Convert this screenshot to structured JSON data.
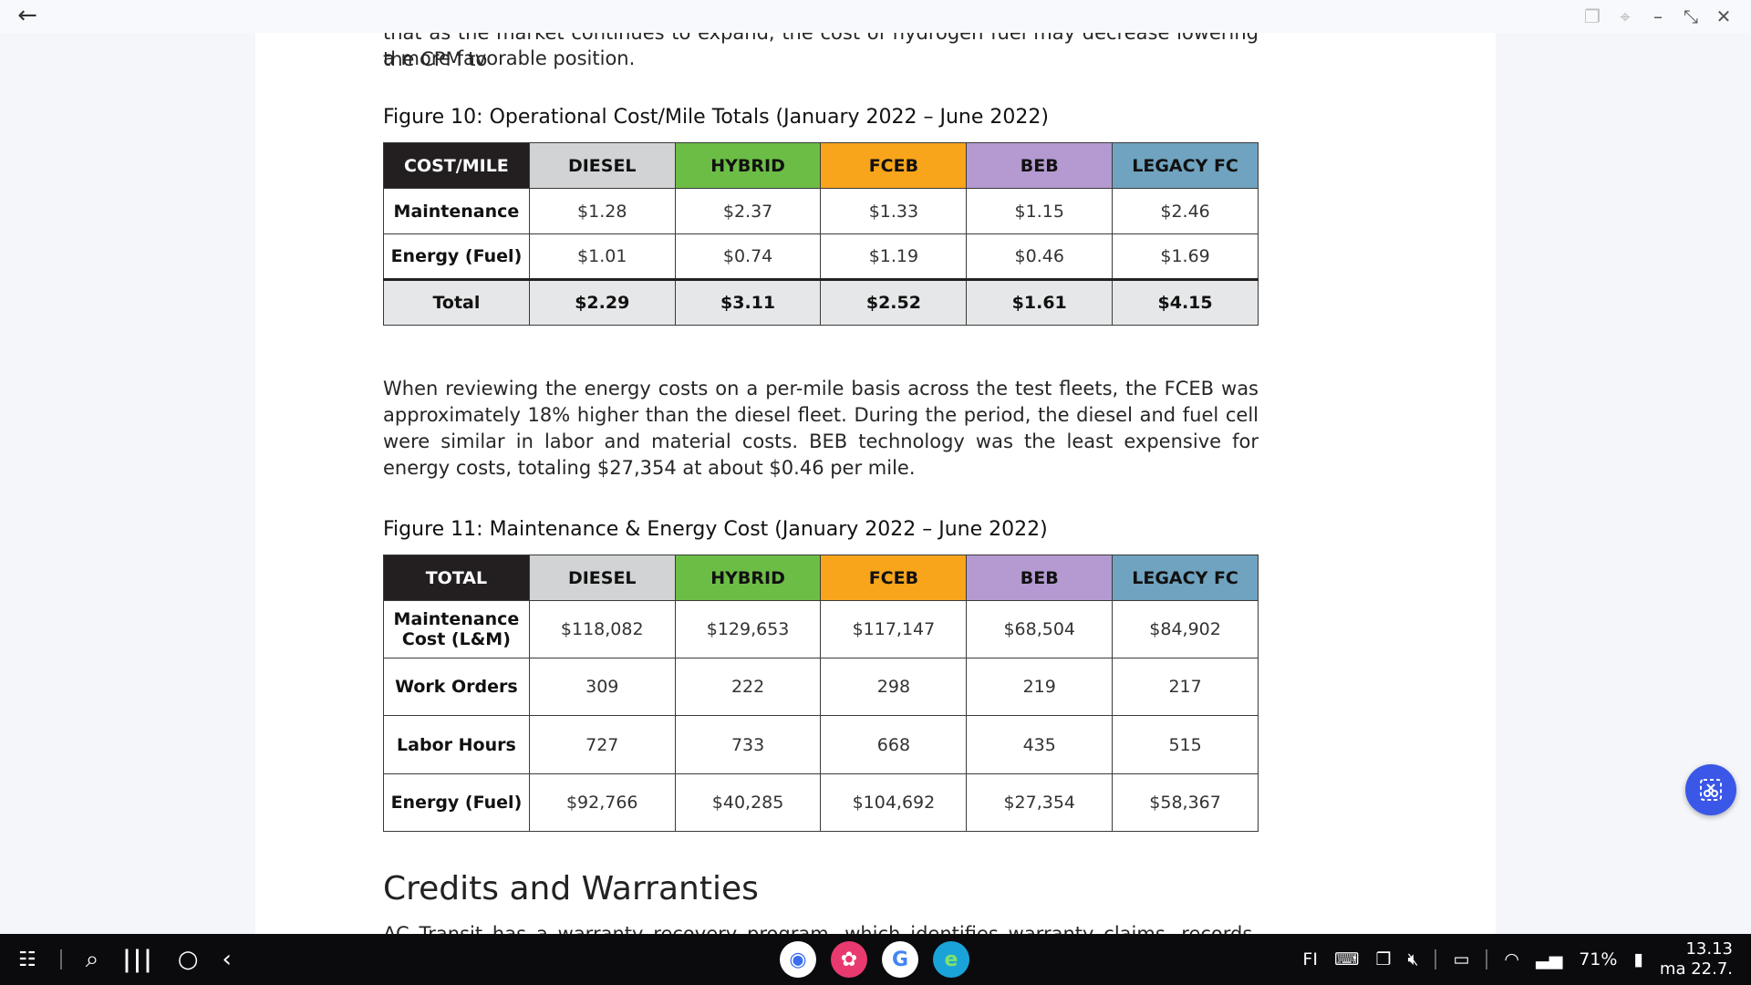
{
  "header": {
    "back_icon": "arrow-left-icon",
    "controls": [
      "duplicate-icon",
      "pin-icon",
      "minimize-icon",
      "restore-icon",
      "close-icon"
    ]
  },
  "document": {
    "cut_top_text": "that as the market continues to expand, the cost of hydrogen fuel may decrease lowering the CPM to",
    "intro_text": "a more favorable position.",
    "figure10": {
      "caption": "Figure 10: Operational Cost/Mile Totals (January 2022 – June 2022)",
      "headers": [
        "COST/MILE",
        "DIESEL",
        "HYBRID",
        "FCEB",
        "BEB",
        "LEGACY FC"
      ],
      "rows": [
        [
          "Maintenance",
          "$1.28",
          "$2.37",
          "$1.33",
          "$1.15",
          "$2.46"
        ],
        [
          "Energy (Fuel)",
          "$1.01",
          "$0.74",
          "$1.19",
          "$0.46",
          "$1.69"
        ]
      ],
      "total": [
        "Total",
        "$2.29",
        "$3.11",
        "$2.52",
        "$1.61",
        "$4.15"
      ]
    },
    "paragraph": "When reviewing the energy costs on a per-mile basis across the test fleets, the FCEB was approximately 18% higher than the diesel fleet. During the period, the diesel and fuel cell were similar in labor and material costs. BEB technology was the least expensive for energy costs, totaling $27,354 at about $0.46 per mile.",
    "figure11": {
      "caption": "Figure 11: Maintenance & Energy Cost (January 2022 – June 2022)",
      "headers": [
        "TOTAL",
        "DIESEL",
        "HYBRID",
        "FCEB",
        "BEB",
        "LEGACY FC"
      ],
      "rows": [
        [
          "Maintenance Cost (L&M)",
          "$118,082",
          "$129,653",
          "$117,147",
          "$68,504",
          "$84,902"
        ],
        [
          "Work Orders",
          "309",
          "222",
          "298",
          "219",
          "217"
        ],
        [
          "Labor Hours",
          "727",
          "733",
          "668",
          "435",
          "515"
        ],
        [
          "Energy (Fuel)",
          "$92,766",
          "$40,285",
          "$104,692",
          "$27,354",
          "$58,367"
        ]
      ]
    },
    "section_title": "Credits and Warranties",
    "cut_bottom_text": "AC Transit has a warranty recovery program, which identifies warranty claims, records, and enforces"
  },
  "colors": {
    "label_header": "#231f20",
    "diesel": "#d1d3d4",
    "hybrid": "#6cbd45",
    "fceb": "#f8a51b",
    "beb": "#b49ad0",
    "legacy_fc": "#6fa3bf",
    "fab": "#3a57e8"
  },
  "fab": {
    "icon": "screenshot-select-icon"
  },
  "taskbar": {
    "left_icons": [
      "apps-grid-icon",
      "search-icon",
      "recents-icon",
      "home-icon",
      "back-icon"
    ],
    "apps": [
      "camera-app-icon",
      "flower-app-icon",
      "google-app-icon",
      "edge-app-icon"
    ],
    "language": "FI",
    "battery": "71%",
    "time": "13.13",
    "date": "ma 22.7."
  }
}
